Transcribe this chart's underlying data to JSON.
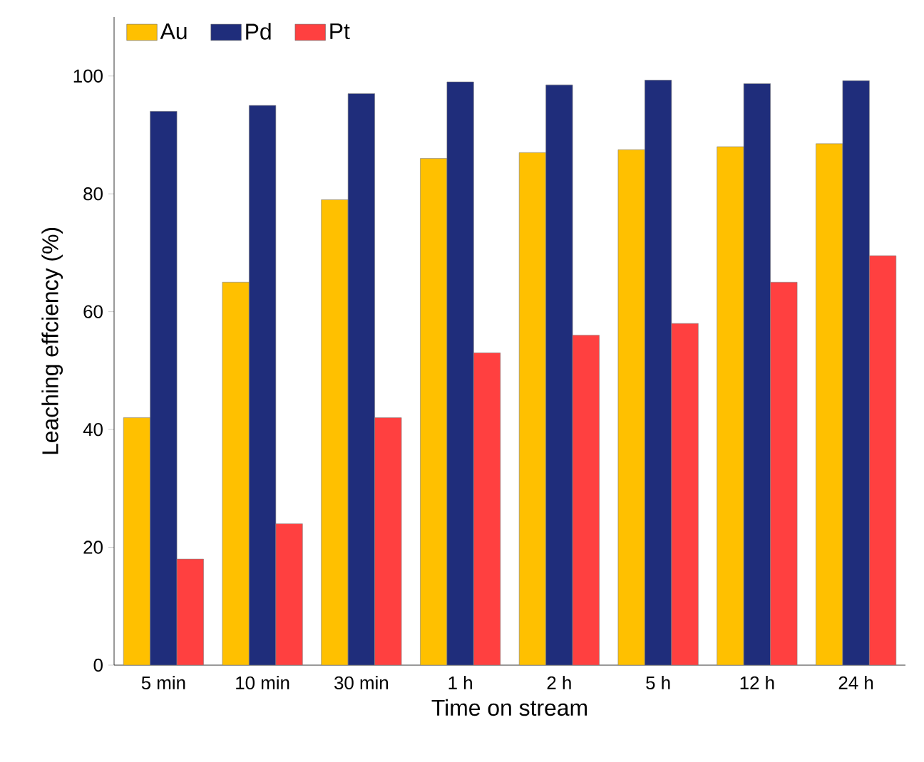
{
  "chart_data": {
    "type": "bar",
    "xlabel": "Time on stream",
    "ylabel": "Leaching effciency (%)",
    "categories": [
      "5 min",
      "10 min",
      "30 min",
      "1 h",
      "2 h",
      "5 h",
      "12 h",
      "24 h"
    ],
    "series": [
      {
        "name": "Au",
        "color": "#ffc000",
        "values": [
          42,
          65,
          79,
          86,
          87,
          87.5,
          88,
          88.5
        ]
      },
      {
        "name": "Pd",
        "color": "#1f2d7b",
        "values": [
          94,
          95,
          97,
          99,
          98.5,
          99.3,
          98.7,
          99.2
        ]
      },
      {
        "name": "Pt",
        "color": "#ff4040",
        "values": [
          18,
          24,
          42,
          53,
          56,
          58,
          65,
          69.5
        ]
      }
    ],
    "ylim": [
      0,
      110
    ],
    "yticks": [
      0,
      20,
      40,
      60,
      80,
      100
    ],
    "grid": false,
    "legend": "top left"
  }
}
